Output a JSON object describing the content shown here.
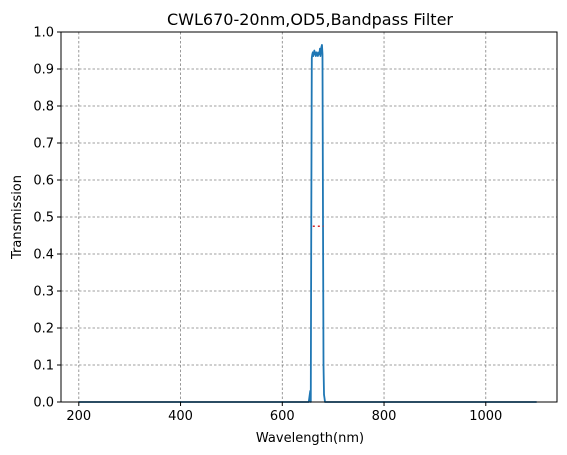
{
  "chart_data": {
    "type": "line",
    "title": "CWL670-20nm,OD5,Bandpass Filter",
    "xlabel": "Wavelength(nm)",
    "ylabel": "Transmission",
    "xlim": [
      165,
      1140
    ],
    "ylim": [
      0,
      1.0
    ],
    "xticks": [
      200,
      400,
      600,
      800,
      1000
    ],
    "yticks": [
      0.0,
      0.1,
      0.2,
      0.3,
      0.4,
      0.5,
      0.6,
      0.7,
      0.8,
      0.9,
      1.0
    ],
    "xtick_labels": [
      "200",
      "400",
      "600",
      "800",
      "1000"
    ],
    "ytick_labels": [
      "0.0",
      "0.1",
      "0.2",
      "0.3",
      "0.4",
      "0.5",
      "0.6",
      "0.7",
      "0.8",
      "0.9",
      "1.0"
    ],
    "grid": true,
    "series": [
      {
        "color": "#1f77b4",
        "x": [
          200,
          640,
          652,
          654,
          655,
          656,
          657,
          658,
          659,
          660,
          661,
          662,
          663,
          664,
          665,
          666,
          667,
          668,
          669,
          670,
          671,
          672,
          673,
          674,
          675,
          676,
          677,
          678,
          679,
          680,
          681,
          682,
          683,
          684,
          686,
          1100
        ],
        "y": [
          0.0,
          0.0,
          0.0,
          0.02,
          0.03,
          0.0,
          0.5,
          0.93,
          0.94,
          0.945,
          0.935,
          0.94,
          0.95,
          0.94,
          0.945,
          0.935,
          0.94,
          0.945,
          0.94,
          0.935,
          0.94,
          0.945,
          0.94,
          0.955,
          0.935,
          0.95,
          0.96,
          0.965,
          0.94,
          0.5,
          0.1,
          0.02,
          0.01,
          0.0,
          0.0,
          0.0
        ]
      }
    ],
    "annotation": {
      "type": "fwhm-marker",
      "color": "#d62728",
      "x": [
        660,
        681
      ],
      "y": 0.475
    }
  }
}
